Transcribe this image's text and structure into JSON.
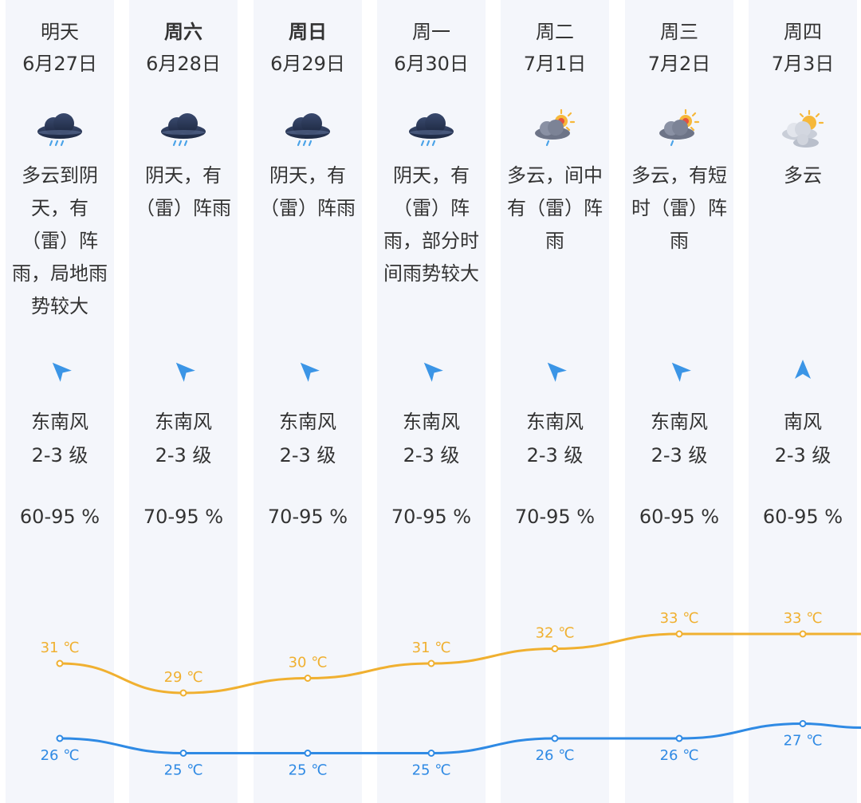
{
  "colors": {
    "column_bg": "#f4f6fb",
    "text": "#333333",
    "high_line": "#f0b030",
    "low_line": "#2f8ae4",
    "arrow": "#3b95e6"
  },
  "days": [
    {
      "day": "明天",
      "date": "6月27日",
      "bold": false,
      "icon": "thunderstorm-cloud-icon",
      "desc_lines": [
        "多云到阴",
        "天，有",
        "（雷）阵",
        "雨，局地雨",
        "势较大"
      ],
      "wind_icon": "wind-direction-southeast-icon",
      "wind": "东南风",
      "wind_level": "2-3 级",
      "humidity": "60-95 %",
      "high_label": "31 ℃",
      "low_label": "26 ℃"
    },
    {
      "day": "周六",
      "date": "6月28日",
      "bold": true,
      "icon": "thunderstorm-cloud-icon",
      "desc_lines": [
        "阴天，有",
        "（雷）阵雨"
      ],
      "wind_icon": "wind-direction-southeast-icon",
      "wind": "东南风",
      "wind_level": "2-3 级",
      "humidity": "70-95 %",
      "high_label": "29 ℃",
      "low_label": "25 ℃"
    },
    {
      "day": "周日",
      "date": "6月29日",
      "bold": true,
      "icon": "thunderstorm-cloud-icon",
      "desc_lines": [
        "阴天，有",
        "（雷）阵雨"
      ],
      "wind_icon": "wind-direction-southeast-icon",
      "wind": "东南风",
      "wind_level": "2-3 级",
      "humidity": "70-95 %",
      "high_label": "30 ℃",
      "low_label": "25 ℃"
    },
    {
      "day": "周一",
      "date": "6月30日",
      "bold": false,
      "icon": "thunderstorm-cloud-icon",
      "desc_lines": [
        "阴天，有",
        "（雷）阵",
        "雨，部分时",
        "间雨势较大"
      ],
      "wind_icon": "wind-direction-southeast-icon",
      "wind": "东南风",
      "wind_level": "2-3 级",
      "humidity": "70-95 %",
      "high_label": "31 ℃",
      "low_label": "25 ℃"
    },
    {
      "day": "周二",
      "date": "7月1日",
      "bold": false,
      "icon": "sun-cloud-rain-icon",
      "desc_lines": [
        "多云，间中",
        "有（雷）阵",
        "雨"
      ],
      "wind_icon": "wind-direction-southeast-icon",
      "wind": "东南风",
      "wind_level": "2-3 级",
      "humidity": "70-95 %",
      "high_label": "32 ℃",
      "low_label": "26 ℃"
    },
    {
      "day": "周三",
      "date": "7月2日",
      "bold": false,
      "icon": "sun-cloud-rain-icon",
      "desc_lines": [
        "多云，有短",
        "时（雷）阵",
        "雨"
      ],
      "wind_icon": "wind-direction-southeast-icon",
      "wind": "东南风",
      "wind_level": "2-3 级",
      "humidity": "60-95 %",
      "high_label": "33 ℃",
      "low_label": "26 ℃"
    },
    {
      "day": "周四",
      "date": "7月3日",
      "bold": false,
      "icon": "partly-cloudy-icon",
      "desc_lines": [
        "多云"
      ],
      "wind_icon": "wind-direction-south-icon",
      "wind": "南风",
      "wind_level": "2-3 级",
      "humidity": "60-95 %",
      "high_label": "33 ℃",
      "low_label": "27 ℃"
    }
  ],
  "chart_data": {
    "type": "line",
    "categories": [
      "6月27日",
      "6月28日",
      "6月29日",
      "6月30日",
      "7月1日",
      "7月2日",
      "7月3日"
    ],
    "series": [
      {
        "values": [
          31,
          29,
          30,
          31,
          32,
          33,
          33
        ],
        "unit": "℃",
        "color": "#f0b030"
      },
      {
        "values": [
          26,
          25,
          25,
          25,
          26,
          26,
          27
        ],
        "unit": "℃",
        "color": "#2f8ae4"
      }
    ],
    "grid": false,
    "legend": "none"
  }
}
